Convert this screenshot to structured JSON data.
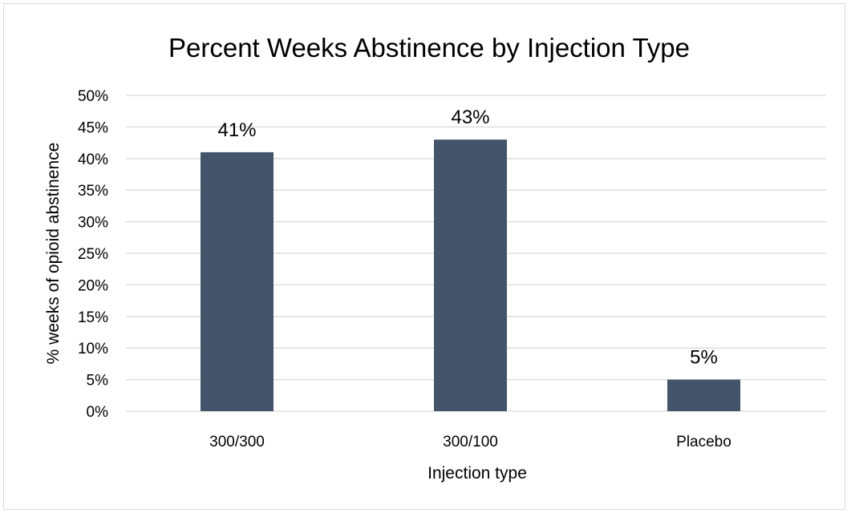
{
  "chart_data": {
    "type": "bar",
    "title": "Percent Weeks Abstinence by Injection Type",
    "xlabel": "Injection type",
    "ylabel": "% weeks of opioid abstinence",
    "categories": [
      "300/300",
      "300/100",
      "Placebo"
    ],
    "values": [
      41,
      43,
      5
    ],
    "value_labels": [
      "41%",
      "43%",
      "5%"
    ],
    "ylim": [
      0,
      50
    ],
    "yticks": [
      0,
      5,
      10,
      15,
      20,
      25,
      30,
      35,
      40,
      45,
      50
    ],
    "ytick_labels": [
      "0%",
      "5%",
      "10%",
      "15%",
      "20%",
      "25%",
      "30%",
      "35%",
      "40%",
      "45%",
      "50%"
    ],
    "grid": true,
    "legend": false,
    "bar_color": "#44546a"
  }
}
